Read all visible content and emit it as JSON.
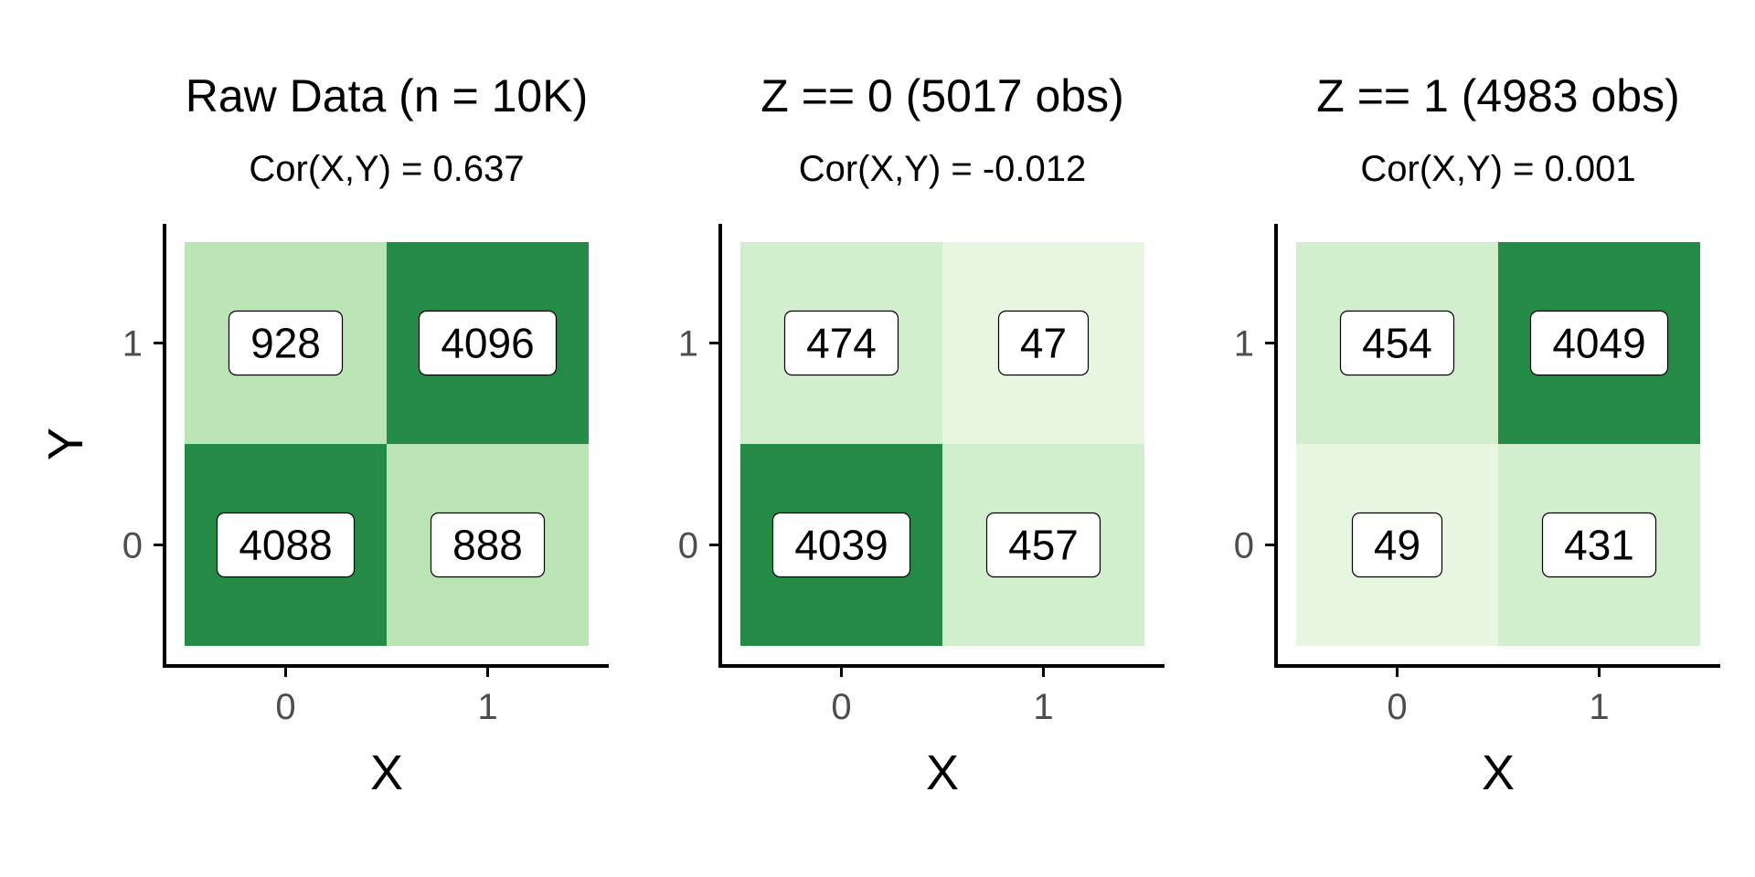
{
  "chart_data": [
    {
      "type": "heatmap",
      "title": "Raw Data (n = 10K)",
      "subtitle": "Cor(X,Y) = 0.637",
      "xlabel": "X",
      "ylabel": "Y",
      "x_categories": [
        "0",
        "1"
      ],
      "y_categories": [
        "0",
        "1"
      ],
      "cells": [
        {
          "x": "0",
          "y": "1",
          "value": 928,
          "color": "#bae4b3"
        },
        {
          "x": "1",
          "y": "1",
          "value": 4096,
          "color": "#238b45"
        },
        {
          "x": "0",
          "y": "0",
          "value": 4088,
          "color": "#238b45"
        },
        {
          "x": "1",
          "y": "0",
          "value": 888,
          "color": "#bae4b3"
        }
      ]
    },
    {
      "type": "heatmap",
      "title": "Z == 0 (5017 obs)",
      "subtitle": "Cor(X,Y) = -0.012",
      "xlabel": "X",
      "ylabel": "",
      "x_categories": [
        "0",
        "1"
      ],
      "y_categories": [
        "0",
        "1"
      ],
      "cells": [
        {
          "x": "0",
          "y": "1",
          "value": 474,
          "color": "#d1efcc"
        },
        {
          "x": "1",
          "y": "1",
          "value": 47,
          "color": "#e7f6e1"
        },
        {
          "x": "0",
          "y": "0",
          "value": 4039,
          "color": "#238b45"
        },
        {
          "x": "1",
          "y": "0",
          "value": 457,
          "color": "#d1efcc"
        }
      ]
    },
    {
      "type": "heatmap",
      "title": "Z == 1 (4983 obs)",
      "subtitle": "Cor(X,Y) = 0.001",
      "xlabel": "X",
      "ylabel": "",
      "x_categories": [
        "0",
        "1"
      ],
      "y_categories": [
        "0",
        "1"
      ],
      "cells": [
        {
          "x": "0",
          "y": "1",
          "value": 454,
          "color": "#d1efcc"
        },
        {
          "x": "1",
          "y": "1",
          "value": 4049,
          "color": "#238b45"
        },
        {
          "x": "0",
          "y": "0",
          "value": 49,
          "color": "#e7f6e1"
        },
        {
          "x": "1",
          "y": "0",
          "value": 431,
          "color": "#d1efcc"
        }
      ]
    }
  ]
}
